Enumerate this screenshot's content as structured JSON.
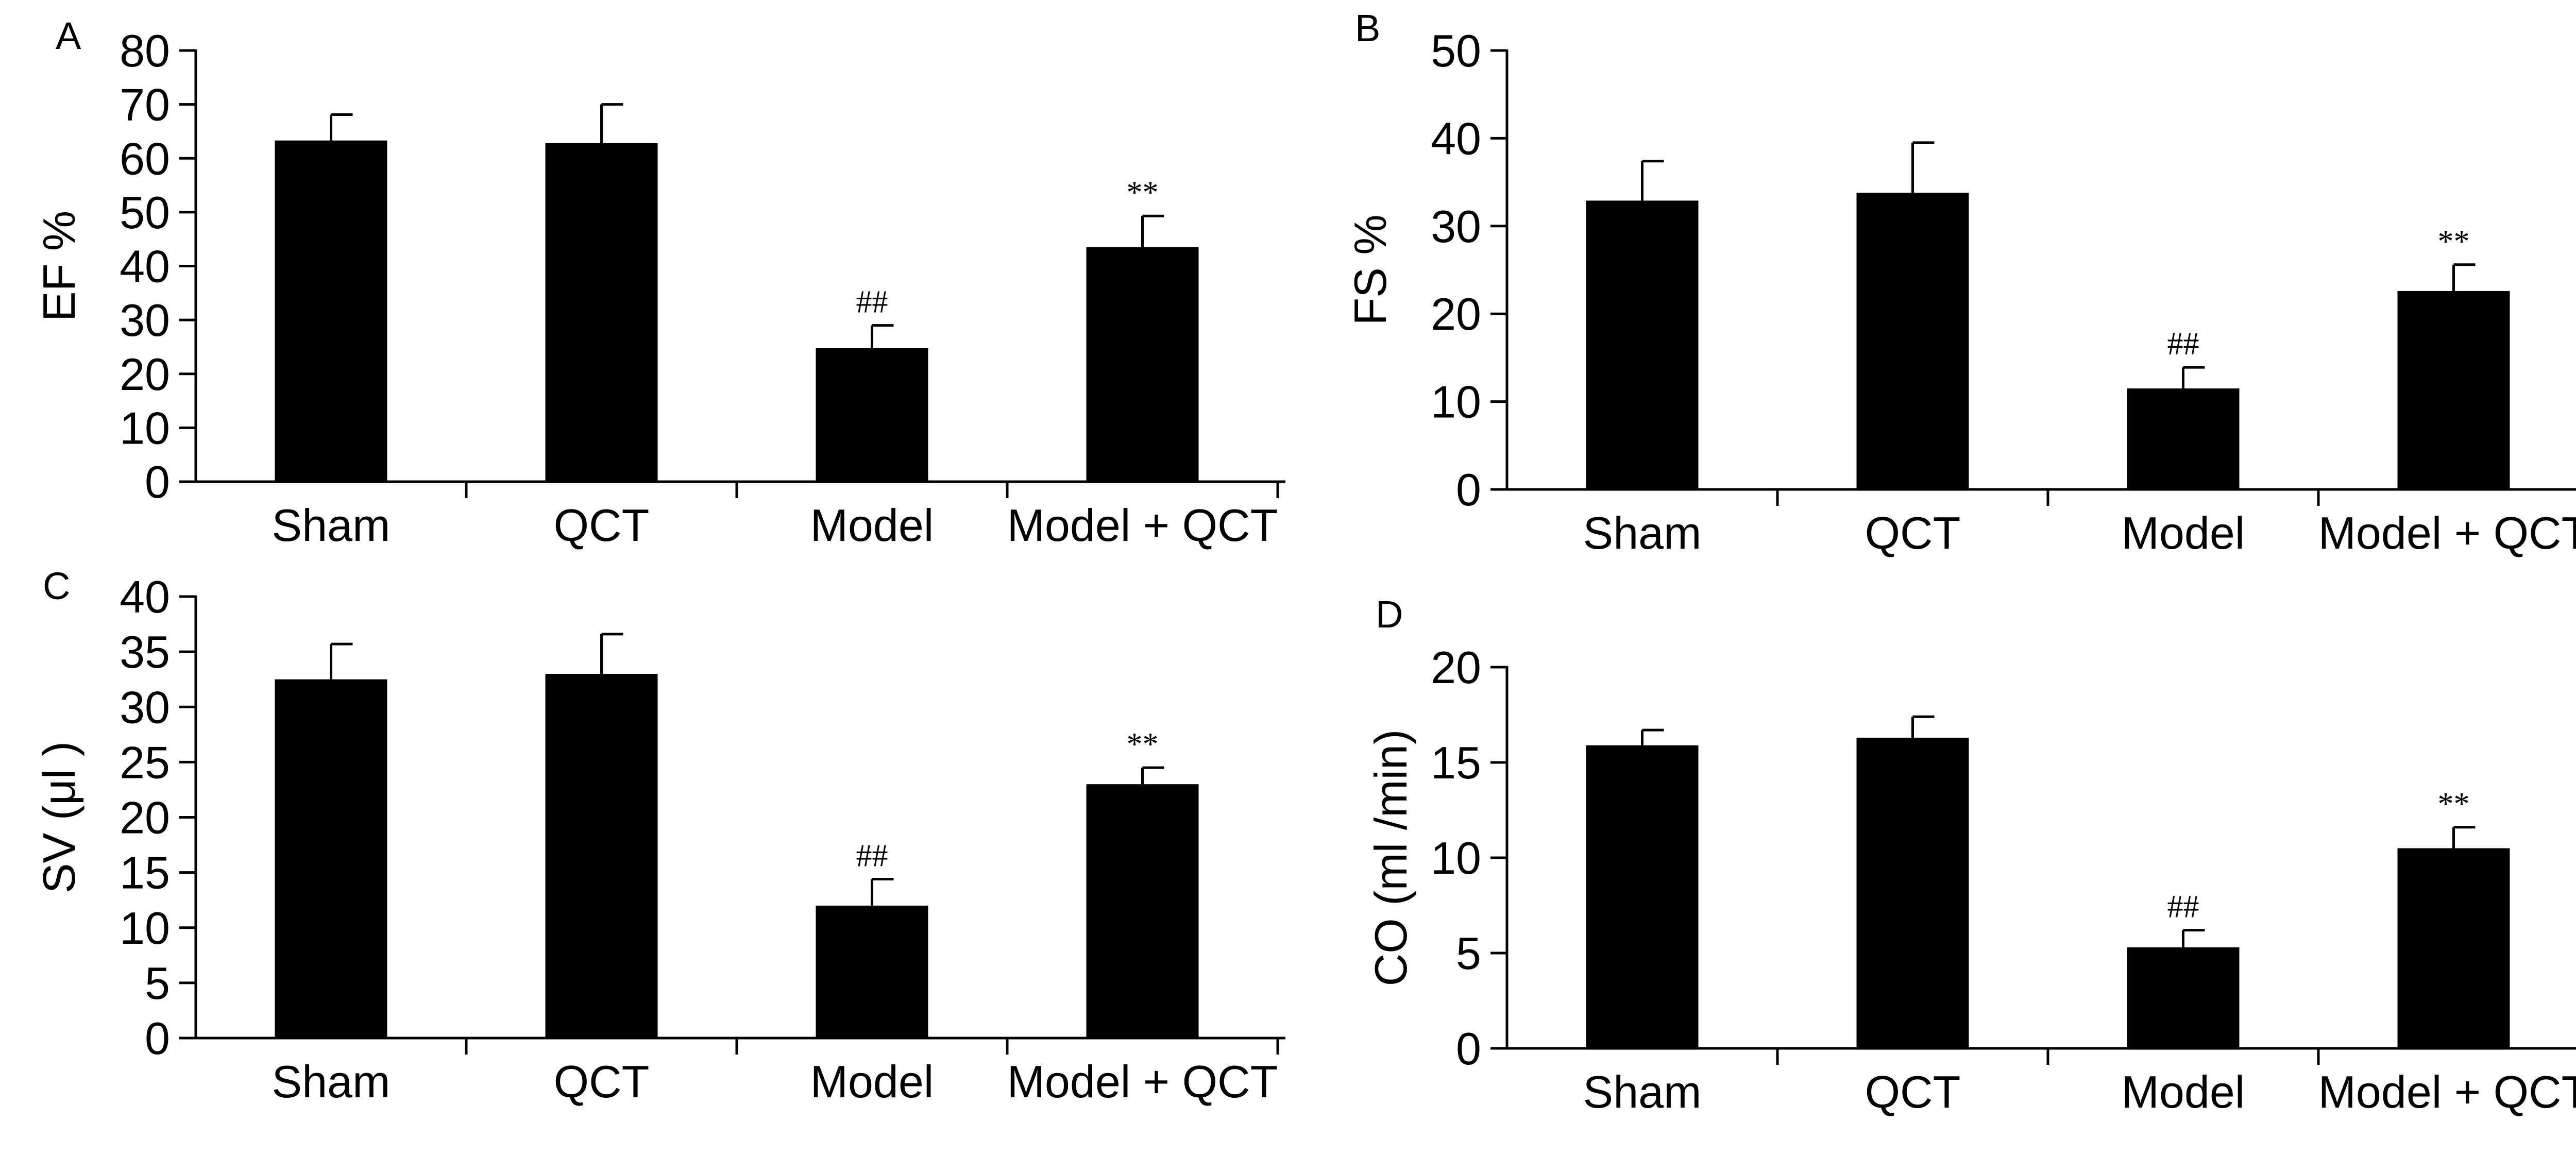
{
  "colors": {
    "bar": "#000000",
    "axis": "#000000",
    "background": "#ffffff"
  },
  "chart_data": [
    {
      "panel": "A",
      "type": "bar",
      "categories": [
        "Sham",
        "QCT",
        "Model",
        "Model + QCT"
      ],
      "values": [
        63.3,
        62.8,
        24.8,
        43.5
      ],
      "errors": [
        4.8,
        7.2,
        4.2,
        5.8
      ],
      "annotations": [
        "",
        "",
        "##",
        "**"
      ],
      "ylabel": "EF %",
      "ylim": [
        0,
        80
      ],
      "yticks": [
        0,
        10,
        20,
        30,
        40,
        50,
        60,
        70,
        80
      ]
    },
    {
      "panel": "B",
      "type": "bar",
      "categories": [
        "Sham",
        "QCT",
        "Model",
        "Model + QCT"
      ],
      "values": [
        32.9,
        33.8,
        11.5,
        22.6
      ],
      "errors": [
        4.5,
        5.7,
        2.4,
        3.0
      ],
      "annotations": [
        "",
        "",
        "##",
        "**"
      ],
      "ylabel": "FS %",
      "ylim": [
        0,
        50
      ],
      "yticks": [
        0,
        10,
        20,
        30,
        40,
        50
      ]
    },
    {
      "panel": "C",
      "type": "bar",
      "categories": [
        "Sham",
        "QCT",
        "Model",
        "Model + QCT"
      ],
      "values": [
        32.5,
        33.0,
        12.0,
        23.0
      ],
      "errors": [
        3.2,
        3.6,
        2.4,
        1.5
      ],
      "annotations": [
        "",
        "",
        "##",
        "**"
      ],
      "ylabel": "SV (μl )",
      "ylim": [
        0,
        40
      ],
      "yticks": [
        0,
        5,
        10,
        15,
        20,
        25,
        30,
        35,
        40
      ]
    },
    {
      "panel": "D",
      "type": "bar",
      "categories": [
        "Sham",
        "QCT",
        "Model",
        "Model + QCT"
      ],
      "values": [
        15.9,
        16.3,
        5.3,
        10.5
      ],
      "errors": [
        0.8,
        1.1,
        0.9,
        1.1
      ],
      "annotations": [
        "",
        "",
        "##",
        "**"
      ],
      "ylabel": "CO (ml /min)",
      "ylim": [
        0,
        20
      ],
      "yticks": [
        0,
        5,
        10,
        15,
        20
      ]
    }
  ]
}
